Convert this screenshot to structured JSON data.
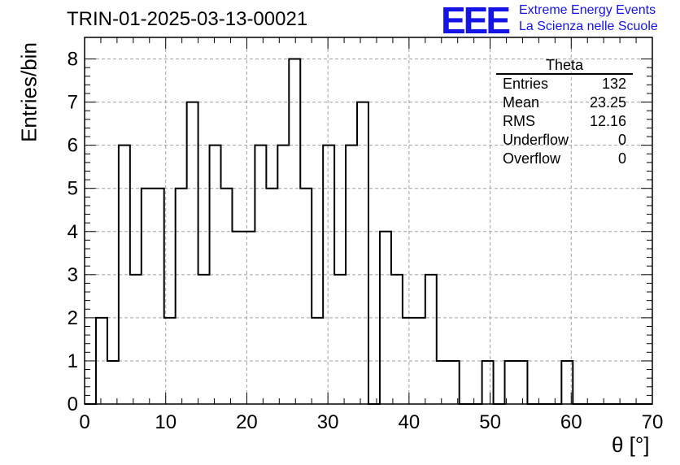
{
  "chart_data": {
    "type": "histogram",
    "title": "TRIN-01-2025-03-13-00021",
    "xlabel": "θ [°]",
    "ylabel": "Entries/bin",
    "xlim": [
      0,
      70
    ],
    "ylim": [
      0,
      8.5
    ],
    "xticks": [
      "0",
      "10",
      "20",
      "30",
      "40",
      "50",
      "60",
      "70"
    ],
    "yticks": [
      "0",
      "1",
      "2",
      "3",
      "4",
      "5",
      "6",
      "7",
      "8"
    ],
    "grid": true,
    "bin_width": 1.4,
    "x_start": 0,
    "values": [
      0,
      2,
      1,
      6,
      3,
      5,
      5,
      2,
      5,
      7,
      3,
      6,
      5,
      4,
      4,
      6,
      5,
      6,
      8,
      5,
      2,
      6,
      3,
      6,
      7,
      0,
      4,
      3,
      2,
      2,
      3,
      1,
      1,
      0,
      0,
      1,
      0,
      1,
      1,
      0,
      0,
      0,
      1,
      0,
      0,
      0,
      0,
      0,
      0,
      0
    ],
    "stats": {
      "name": "Theta",
      "rows": [
        {
          "label": "Entries",
          "value": "132"
        },
        {
          "label": "Mean",
          "value": "23.25"
        },
        {
          "label": "RMS",
          "value": "12.16"
        },
        {
          "label": "Underflow",
          "value": "0"
        },
        {
          "label": "Overflow",
          "value": "0"
        }
      ]
    }
  },
  "logo": {
    "text": "EEE",
    "line1": "Extreme Energy Events",
    "line2": "La Scienza nelle Scuole",
    "color": "#1414e6"
  }
}
